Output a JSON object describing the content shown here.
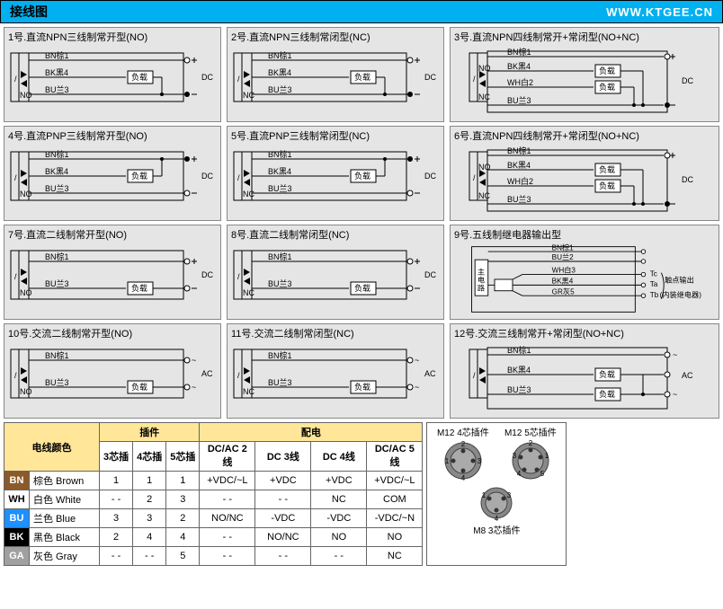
{
  "header": {
    "title": "接线图",
    "url": "WWW.KTGEE.CN"
  },
  "colors": {
    "header_bg": "#00b0f0",
    "cell_bg": "#e5e5e5",
    "table_hdr_bg": "#ffe699",
    "bn": "#8b5a2b",
    "wh": "#ffffff",
    "bu": "#1e90ff",
    "bk": "#000000",
    "ga": "#808080"
  },
  "diagrams": [
    {
      "id": 1,
      "title": "1号.直流NPN三线制常开型(NO)"
    },
    {
      "id": 2,
      "title": "2号.直流NPN三线制常闭型(NC)"
    },
    {
      "id": 3,
      "title": "3号.直流NPN四线制常开+常闭型(NO+NC)"
    },
    {
      "id": 4,
      "title": "4号.直流PNP三线制常开型(NO)"
    },
    {
      "id": 5,
      "title": "5号.直流PNP三线制常闭型(NC)"
    },
    {
      "id": 6,
      "title": "6号.直流NPN四线制常开+常闭型(NO+NC)"
    },
    {
      "id": 7,
      "title": "7号.直流二线制常开型(NO)"
    },
    {
      "id": 8,
      "title": "8号.直流二线制常闭型(NC)"
    },
    {
      "id": 9,
      "title": "9号.五线制继电器输出型"
    },
    {
      "id": 10,
      "title": "10号.交流二线制常开型(NO)"
    },
    {
      "id": 11,
      "title": "11号.交流二线制常闭型(NC)"
    },
    {
      "id": 12,
      "title": "12号.交流三线制常开+常闭型(NO+NC)"
    }
  ],
  "labels": {
    "bn": "BN棕1",
    "bk": "BK黑4",
    "bu": "BU兰3",
    "wh": "WH白2",
    "wh3": "WH白3",
    "bk4": "BK黑4",
    "gr5": "GR灰5",
    "bu2": "BU兰2",
    "load": "负载",
    "dc": "DC",
    "ac": "AC",
    "no": "NO",
    "nc": "NC",
    "main": "主电路",
    "tc": "Tc",
    "ta": "Ta",
    "tb": "Tb",
    "contact": "触点输出",
    "relay": "(内装继电器)"
  },
  "colorTable": {
    "header": "电线颜色",
    "rows": [
      {
        "code": "BN",
        "bg": "#8b5a2b",
        "name": "棕色 Brown"
      },
      {
        "code": "WH",
        "bg": "#ffffff",
        "fg": "#000",
        "name": "白色 White"
      },
      {
        "code": "BU",
        "bg": "#1e90ff",
        "name": "兰色  Blue"
      },
      {
        "code": "BK",
        "bg": "#000000",
        "name": "黑色 Black"
      },
      {
        "code": "GA",
        "bg": "#a0a0a0",
        "name": "灰色 Gray"
      }
    ]
  },
  "plugTable": {
    "header": "插件",
    "cols": [
      "3芯插",
      "4芯插",
      "5芯插"
    ],
    "rows": [
      [
        "1",
        "1",
        "1"
      ],
      [
        "- -",
        "2",
        "3"
      ],
      [
        "3",
        "3",
        "2"
      ],
      [
        "2",
        "4",
        "4"
      ],
      [
        "- -",
        "- -",
        "5"
      ]
    ]
  },
  "powerTable": {
    "header": "配电",
    "cols": [
      "DC/AC 2线",
      "DC 3线",
      "DC 4线",
      "DC/AC 5线"
    ],
    "rows": [
      [
        "+VDC/~L",
        "+VDC",
        "+VDC",
        "+VDC/~L"
      ],
      [
        "- -",
        "- -",
        "NC",
        "COM"
      ],
      [
        "NO/NC",
        "-VDC",
        "-VDC",
        "-VDC/~N"
      ],
      [
        "- -",
        "NO/NC",
        "NO",
        "NO"
      ],
      [
        "- -",
        "- -",
        "- -",
        "NC"
      ]
    ]
  },
  "connectors": {
    "m12_4": "M12 4芯插件",
    "m12_5": "M12 5芯插件",
    "m8_3": "M8 3芯插件"
  }
}
